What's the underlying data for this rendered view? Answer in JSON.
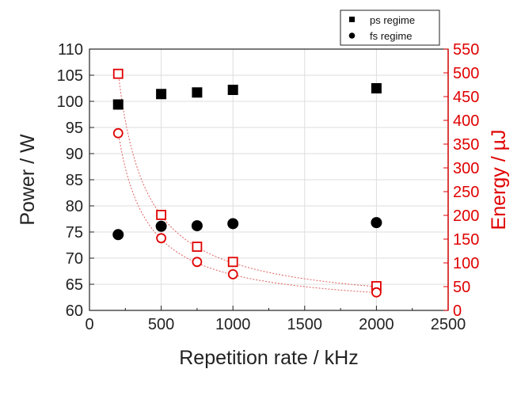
{
  "chart_data": {
    "type": "scatter",
    "xlabel": "Repetition rate / kHz",
    "ylabel": "Power / W",
    "y2label": "Energy / µJ",
    "xlim": [
      0,
      2500
    ],
    "ylim": [
      60,
      110
    ],
    "y2lim": [
      0,
      550
    ],
    "xticks": [
      "0",
      "500",
      "1000",
      "1500",
      "2000",
      "2500"
    ],
    "yticks": [
      "60",
      "65",
      "70",
      "75",
      "80",
      "85",
      "90",
      "95",
      "100",
      "105",
      "110"
    ],
    "y2ticks": [
      "0",
      "50",
      "100",
      "150",
      "200",
      "250",
      "300",
      "350",
      "400",
      "450",
      "500",
      "550"
    ],
    "grid": true,
    "legend_position": "top-right",
    "colors": {
      "left_axis": "#000000",
      "right_axis": "#e00000",
      "fit_line": "#e06060"
    },
    "legend": [
      {
        "label": "ps regime",
        "marker": "square"
      },
      {
        "label": "fs regime",
        "marker": "circle"
      }
    ],
    "series": [
      {
        "name": "ps regime",
        "axis": "left",
        "marker": "filled-square",
        "x": [
          200,
          500,
          750,
          1000,
          2000
        ],
        "y": [
          99.4,
          101.4,
          101.7,
          102.2,
          102.5
        ]
      },
      {
        "name": "fs regime",
        "axis": "left",
        "marker": "filled-circle",
        "x": [
          200,
          500,
          750,
          1000,
          2000
        ],
        "y": [
          74.5,
          76.1,
          76.2,
          76.6,
          76.8
        ]
      },
      {
        "axis": "right",
        "marker": "open-square",
        "x": [
          200,
          500,
          750,
          1000,
          2000
        ],
        "y": [
          498,
          201,
          134,
          102,
          51
        ]
      },
      {
        "axis": "right",
        "marker": "open-circle",
        "x": [
          200,
          500,
          750,
          1000,
          2000
        ],
        "y": [
          373,
          152,
          102,
          76,
          38
        ]
      }
    ]
  }
}
